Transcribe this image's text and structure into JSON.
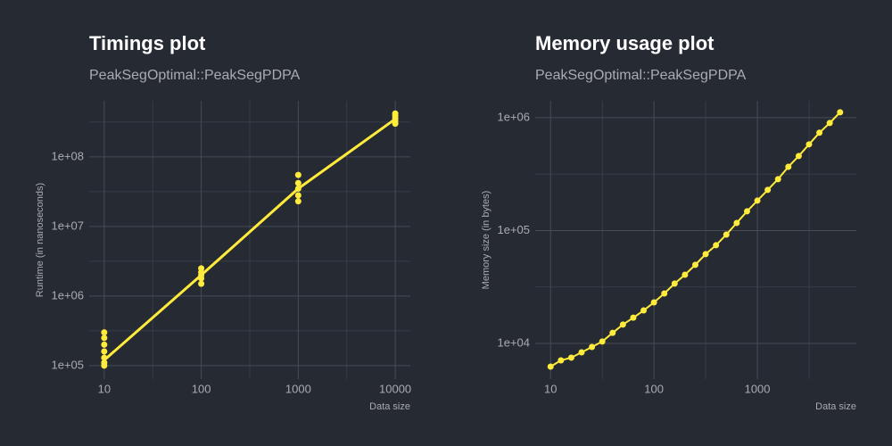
{
  "chart_data": [
    {
      "type": "line",
      "title": "Timings plot",
      "subtitle": "PeakSegOptimal::PeakSegPDPA",
      "xlabel": "Data size",
      "ylabel": "Runtime (in nanoseconds)",
      "xlog": true,
      "ylog": true,
      "grid": true,
      "xlim": [
        7,
        14300
      ],
      "ylim": [
        64000,
        640000000
      ],
      "xticks": [
        10,
        100,
        1000,
        10000
      ],
      "yticks": [
        {
          "value": 100000,
          "label": "1e+05"
        },
        {
          "value": 1000000,
          "label": "1e+06"
        },
        {
          "value": 10000000,
          "label": "1e+07"
        },
        {
          "value": 100000000,
          "label": "1e+08"
        }
      ],
      "x_minor_grid": [
        31.62,
        316.2,
        3162
      ],
      "y_minor_grid": [
        316200,
        3162000,
        31620000,
        316200000
      ],
      "series": [
        {
          "mode": "markers",
          "color": "#ffeb3b",
          "x": [
            10,
            10,
            10,
            10,
            10,
            10,
            10,
            100,
            100,
            100,
            100,
            100,
            1000,
            1000,
            1000,
            1000,
            1000,
            10000,
            10000,
            10000,
            10000,
            10000
          ],
          "values": [
            100000,
            110000,
            130000,
            160000,
            200000,
            250000,
            300000,
            1500000,
            1800000,
            2000000,
            2200000,
            2500000,
            23000000,
            28000000,
            35000000,
            42000000,
            55000000,
            300000000,
            330000000,
            360000000,
            390000000,
            420000000
          ]
        },
        {
          "mode": "lines",
          "color": "#ffeb3b",
          "x": [
            10,
            100,
            1000,
            10000
          ],
          "values": [
            120000,
            2000000,
            35000000,
            350000000
          ]
        }
      ]
    },
    {
      "type": "line",
      "title": "Memory usage plot",
      "subtitle": "PeakSegOptimal::PeakSegPDPA",
      "xlabel": "Data size",
      "ylabel": "Memory size (in bytes)",
      "xlog": true,
      "ylog": true,
      "grid": true,
      "xlim": [
        7.1,
        9060
      ],
      "ylim": [
        4830,
        1410000
      ],
      "xticks": [
        10,
        100,
        1000
      ],
      "yticks": [
        {
          "value": 10000,
          "label": "1e+04"
        },
        {
          "value": 100000,
          "label": "1e+05"
        },
        {
          "value": 1000000,
          "label": "1e+06"
        }
      ],
      "x_minor_grid": [
        31.62,
        316.2,
        3162
      ],
      "y_minor_grid": [
        31620,
        316200
      ],
      "series": [
        {
          "mode": "lines+markers",
          "color": "#ffeb3b",
          "x": [
            10,
            12.59,
            15.85,
            19.95,
            25.12,
            31.62,
            39.81,
            50.12,
            63.1,
            79.43,
            100,
            125.9,
            158.5,
            199.5,
            251.2,
            316.2,
            398.1,
            501.2,
            631,
            794.3,
            1000,
            1259,
            1585,
            1995,
            2512,
            3162,
            3981,
            5012,
            6310
          ],
          "values": [
            6230,
            7080,
            7480,
            8340,
            9300,
            10400,
            12400,
            14700,
            16900,
            19600,
            23100,
            27700,
            33900,
            40600,
            49700,
            61800,
            74100,
            92100,
            116700,
            147900,
            184000,
            229000,
            285000,
            367000,
            457000,
            580000,
            735000,
            897000,
            1115000
          ]
        }
      ]
    }
  ]
}
